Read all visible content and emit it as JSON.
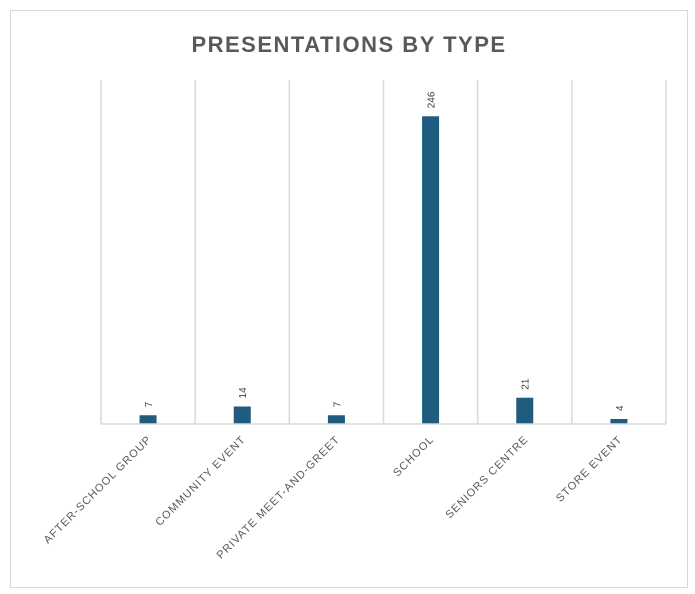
{
  "chart_data": {
    "type": "bar",
    "title": "PRESENTATIONS BY TYPE",
    "xlabel": "",
    "ylabel": "",
    "categories": [
      "AFTER-SCHOOL GROUP",
      "COMMUNITY EVENT",
      "PRIVATE MEET-AND-GREET",
      "SCHOOL",
      "SENIORS CENTRE",
      "STORE EVENT"
    ],
    "values": [
      7,
      14,
      7,
      246,
      21,
      4
    ],
    "ylim": [
      0,
      275
    ],
    "grid": "vertical",
    "legend": "none",
    "bar_color": "#1f5c7e",
    "grid_color": "#d9d9d9",
    "axis_color": "#d9d9d9"
  }
}
